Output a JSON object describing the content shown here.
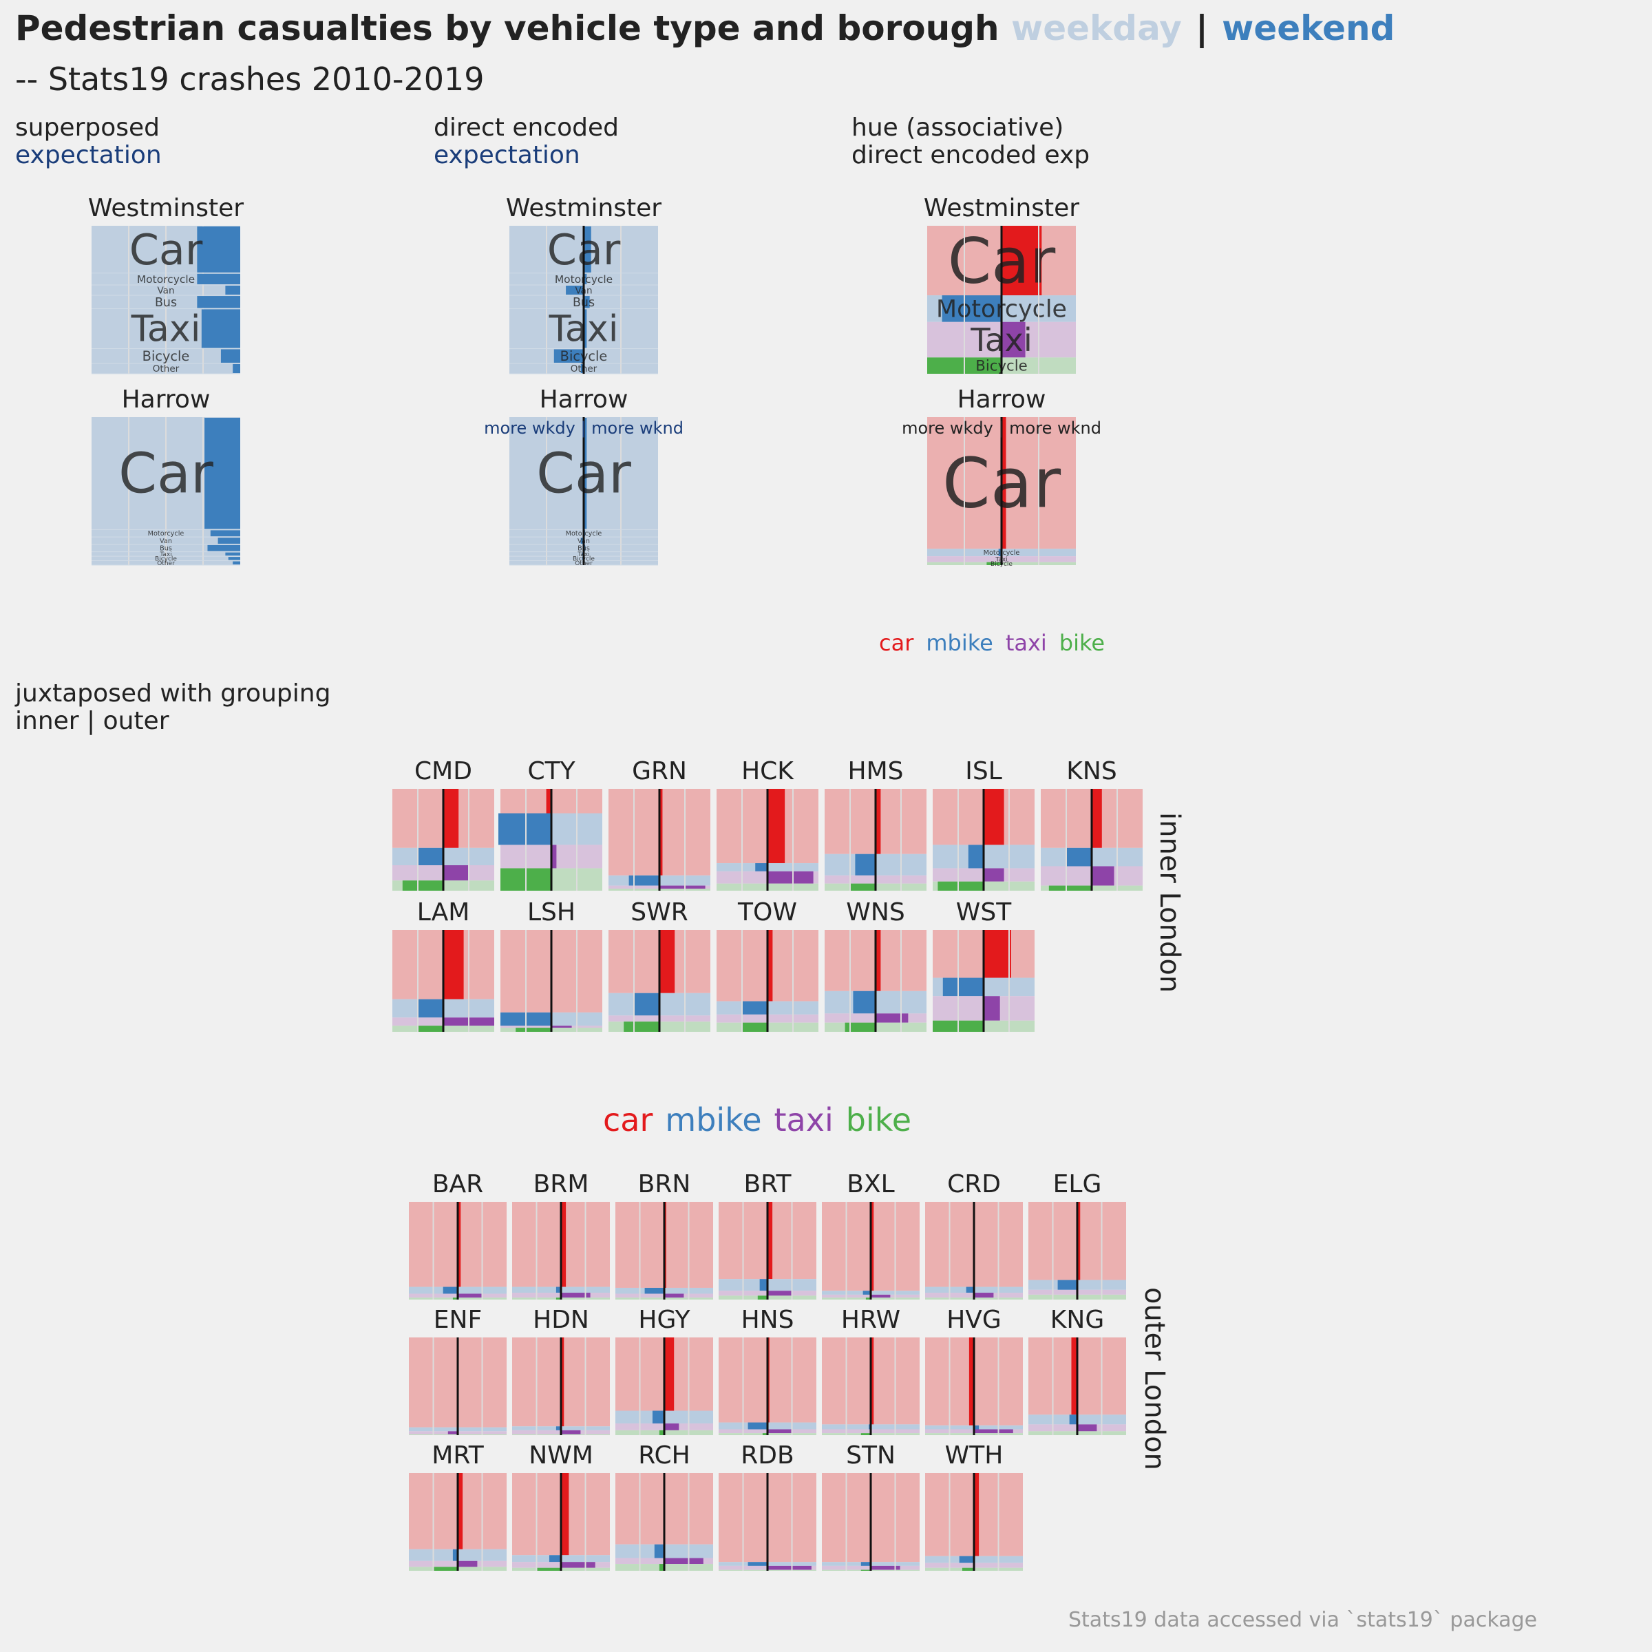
{
  "title": {
    "main": "Pedestrian casualties by vehicle type and borough",
    "weekday": "weekday",
    "separator": "|",
    "weekend": "weekend"
  },
  "subtitle": "-- Stats19 crashes 2010-2019",
  "panels": {
    "superposed": {
      "line1": "superposed",
      "line2": "expectation"
    },
    "direct": {
      "line1": "direct encoded",
      "line2": "expectation"
    },
    "hue": {
      "line1": "hue (associative)",
      "line2": "direct encoded exp"
    },
    "juxtaposed": {
      "line1": "juxtaposed with grouping",
      "line2": "inner | outer"
    }
  },
  "legend": {
    "car": "car",
    "mbike": "mbike",
    "taxi": "taxi",
    "bike": "bike"
  },
  "colors": {
    "car": "#e31a1c",
    "mbike": "#3d7fbd",
    "taxi": "#8e44a8",
    "bike": "#4daf4a",
    "car_light": "#ebb0b0",
    "mbike_light": "#b8cce0",
    "taxi_light": "#d8c2dc",
    "bike_light": "#c0dcc0",
    "weekday": "#bfcfe0",
    "weekend": "#3d7fbd"
  },
  "group_labels": {
    "inner": "inner London",
    "outer": "outer London"
  },
  "credit": "Stats19 data accessed via `stats19` package",
  "chart_data": [
    {
      "type": "bar",
      "title": "superposed expectation",
      "boroughs": [
        {
          "name": "Westminster",
          "categories": [
            "Car",
            "Motorcycle",
            "Van",
            "Bus",
            "Taxi",
            "Bicycle",
            "Other"
          ],
          "share": [
            0.32,
            0.08,
            0.07,
            0.09,
            0.27,
            0.1,
            0.07
          ],
          "weekend_ratio": [
            0.29,
            0.29,
            0.1,
            0.29,
            0.26,
            0.13,
            0.05
          ]
        },
        {
          "name": "Harrow",
          "categories": [
            "Car",
            "Motorcycle",
            "Van",
            "Bus",
            "Taxi",
            "Bicycle",
            "Other"
          ],
          "share": [
            0.76,
            0.05,
            0.05,
            0.05,
            0.03,
            0.03,
            0.03
          ],
          "weekend_ratio": [
            0.24,
            0.2,
            0.15,
            0.22,
            0.1,
            0.08,
            0.05
          ]
        }
      ]
    },
    {
      "type": "bar",
      "title": "direct encoded expectation",
      "annotation": "more wkdy | more wknd",
      "boroughs": [
        {
          "name": "Westminster",
          "categories": [
            "Car",
            "Motorcycle",
            "Van",
            "Bus",
            "Taxi",
            "Bicycle",
            "Other"
          ],
          "share": [
            0.32,
            0.08,
            0.07,
            0.09,
            0.27,
            0.1,
            0.07
          ],
          "diff": [
            0.05,
            0.02,
            -0.12,
            0.04,
            0.02,
            -0.2,
            -0.02
          ]
        },
        {
          "name": "Harrow",
          "categories": [
            "Car",
            "Motorcycle",
            "Van",
            "Bus",
            "Taxi",
            "Bicycle",
            "Other"
          ],
          "share": [
            0.76,
            0.05,
            0.05,
            0.05,
            0.03,
            0.03,
            0.03
          ],
          "diff": [
            0.02,
            0.01,
            -0.02,
            0.01,
            -0.01,
            -0.01,
            0.0
          ]
        }
      ]
    },
    {
      "type": "bar",
      "title": "hue (associative) direct encoded exp",
      "annotation": "more wkdy | more wknd",
      "boroughs": [
        {
          "name": "Westminster",
          "categories": [
            "Car",
            "Motorcycle",
            "Taxi",
            "Bicycle"
          ],
          "share": [
            0.47,
            0.18,
            0.24,
            0.11
          ],
          "diff": [
            0.27,
            -0.4,
            0.16,
            -0.5
          ]
        },
        {
          "name": "Harrow",
          "categories": [
            "Car",
            "Motorcycle",
            "Taxi",
            "Bicycle"
          ],
          "share": [
            0.89,
            0.05,
            0.04,
            0.02
          ],
          "diff": [
            0.03,
            -0.02,
            0.0,
            -0.1
          ]
        }
      ]
    },
    {
      "type": "bar",
      "title": "juxtaposed with grouping inner | outer",
      "categories": [
        "car",
        "mbike",
        "taxi",
        "bike"
      ],
      "groups": [
        {
          "name": "inner London",
          "boroughs": [
            {
              "name": "CMD",
              "share": [
                0.58,
                0.17,
                0.15,
                0.1
              ],
              "diff": [
                0.15,
                -0.25,
                0.25,
                -0.4
              ]
            },
            {
              "name": "CTY",
              "share": [
                0.24,
                0.31,
                0.23,
                0.22
              ],
              "diff": [
                -0.05,
                -0.52,
                0.05,
                -0.5
              ]
            },
            {
              "name": "GRN",
              "share": [
                0.85,
                0.1,
                0.03,
                0.02
              ],
              "diff": [
                0.03,
                -0.3,
                0.45,
                0.0
              ]
            },
            {
              "name": "HCK",
              "share": [
                0.73,
                0.08,
                0.12,
                0.07
              ],
              "diff": [
                0.17,
                -0.12,
                0.45,
                0.0
              ]
            },
            {
              "name": "HMS",
              "share": [
                0.64,
                0.21,
                0.08,
                0.07
              ],
              "diff": [
                0.05,
                -0.2,
                0.0,
                -0.25
              ]
            },
            {
              "name": "ISL",
              "share": [
                0.55,
                0.23,
                0.13,
                0.09
              ],
              "diff": [
                0.2,
                -0.15,
                0.2,
                -0.45
              ]
            },
            {
              "name": "KNS",
              "share": [
                0.58,
                0.18,
                0.19,
                0.05
              ],
              "diff": [
                0.1,
                -0.25,
                0.22,
                -0.42
              ]
            },
            {
              "name": "LAM",
              "share": [
                0.68,
                0.18,
                0.08,
                0.06
              ],
              "diff": [
                0.2,
                -0.25,
                0.5,
                -0.25
              ]
            },
            {
              "name": "LSH",
              "share": [
                0.81,
                0.13,
                0.02,
                0.04
              ],
              "diff": [
                0.0,
                -0.5,
                0.2,
                -0.35
              ]
            },
            {
              "name": "SWR",
              "share": [
                0.62,
                0.22,
                0.06,
                0.1
              ],
              "diff": [
                0.15,
                -0.25,
                0.0,
                -0.35
              ]
            },
            {
              "name": "TOW",
              "share": [
                0.7,
                0.13,
                0.08,
                0.09
              ],
              "diff": [
                0.05,
                -0.25,
                0.0,
                -0.25
              ]
            },
            {
              "name": "WNS",
              "share": [
                0.6,
                0.22,
                0.09,
                0.09
              ],
              "diff": [
                0.05,
                -0.22,
                0.32,
                -0.3
              ]
            },
            {
              "name": "WST",
              "share": [
                0.47,
                0.18,
                0.24,
                0.11
              ],
              "diff": [
                0.27,
                -0.4,
                0.16,
                -0.5
              ]
            }
          ]
        },
        {
          "name": "outer London",
          "boroughs": [
            {
              "name": "BAR",
              "share": [
                0.87,
                0.07,
                0.04,
                0.02
              ],
              "diff": [
                0.03,
                -0.15,
                0.25,
                -0.05
              ]
            },
            {
              "name": "BRM",
              "share": [
                0.87,
                0.06,
                0.05,
                0.02
              ],
              "diff": [
                0.05,
                -0.05,
                0.3,
                -0.05
              ]
            },
            {
              "name": "BRN",
              "share": [
                0.88,
                0.06,
                0.04,
                0.02
              ],
              "diff": [
                0.02,
                -0.2,
                0.2,
                0.0
              ]
            },
            {
              "name": "BRT",
              "share": [
                0.79,
                0.12,
                0.05,
                0.04
              ],
              "diff": [
                0.05,
                -0.08,
                0.25,
                -0.1
              ]
            },
            {
              "name": "BXL",
              "share": [
                0.91,
                0.04,
                0.03,
                0.02
              ],
              "diff": [
                0.03,
                -0.08,
                0.2,
                -0.05
              ]
            },
            {
              "name": "CRD",
              "share": [
                0.87,
                0.06,
                0.05,
                0.02
              ],
              "diff": [
                0.01,
                -0.08,
                0.2,
                0.0
              ]
            },
            {
              "name": "ELG",
              "share": [
                0.8,
                0.1,
                0.05,
                0.05
              ],
              "diff": [
                0.03,
                -0.2,
                0.0,
                0.0
              ]
            },
            {
              "name": "ENF",
              "share": [
                0.92,
                0.04,
                0.03,
                0.01
              ],
              "diff": [
                0.0,
                0.0,
                -0.1,
                0.0
              ]
            },
            {
              "name": "HDN",
              "share": [
                0.91,
                0.04,
                0.04,
                0.01
              ],
              "diff": [
                0.03,
                -0.05,
                0.2,
                0.0
              ]
            },
            {
              "name": "HGY",
              "share": [
                0.75,
                0.13,
                0.07,
                0.05
              ],
              "diff": [
                0.1,
                -0.12,
                0.15,
                -0.05
              ]
            },
            {
              "name": "HNS",
              "share": [
                0.87,
                0.07,
                0.04,
                0.02
              ],
              "diff": [
                0.02,
                -0.2,
                0.25,
                -0.05
              ]
            },
            {
              "name": "HRW",
              "share": [
                0.89,
                0.05,
                0.04,
                0.02
              ],
              "diff": [
                0.03,
                -0.02,
                0.0,
                -0.1
              ]
            },
            {
              "name": "HVG",
              "share": [
                0.9,
                0.04,
                0.04,
                0.02
              ],
              "diff": [
                -0.05,
                0.05,
                0.4,
                0.0
              ]
            },
            {
              "name": "KNG",
              "share": [
                0.79,
                0.1,
                0.07,
                0.04
              ],
              "diff": [
                -0.06,
                -0.08,
                0.2,
                0.0
              ]
            },
            {
              "name": "MRT",
              "share": [
                0.78,
                0.12,
                0.06,
                0.04
              ],
              "diff": [
                0.05,
                -0.05,
                0.2,
                -0.25
              ]
            },
            {
              "name": "NWM",
              "share": [
                0.84,
                0.07,
                0.06,
                0.03
              ],
              "diff": [
                0.08,
                -0.12,
                0.35,
                -0.25
              ]
            },
            {
              "name": "RCH",
              "share": [
                0.73,
                0.14,
                0.06,
                0.07
              ],
              "diff": [
                0.0,
                -0.1,
                0.4,
                -0.05
              ]
            },
            {
              "name": "RDB",
              "share": [
                0.91,
                0.04,
                0.04,
                0.01
              ],
              "diff": [
                0.0,
                -0.2,
                0.45,
                0.0
              ]
            },
            {
              "name": "STN",
              "share": [
                0.91,
                0.04,
                0.04,
                0.01
              ],
              "diff": [
                0.0,
                -0.1,
                0.3,
                -0.1
              ]
            },
            {
              "name": "WTH",
              "share": [
                0.85,
                0.07,
                0.05,
                0.03
              ],
              "diff": [
                0.05,
                -0.15,
                0.0,
                -0.12
              ]
            }
          ]
        }
      ]
    }
  ]
}
